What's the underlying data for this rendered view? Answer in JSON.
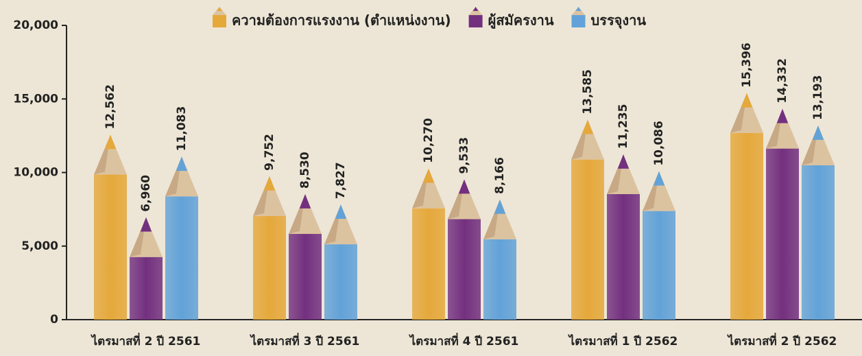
{
  "chart_data": {
    "type": "pencil-bar",
    "categories": [
      "ไตรมาสที่ 2 ปี 2561",
      "ไตรมาสที่ 3 ปี 2561",
      "ไตรมาสที่ 4 ปี 2561",
      "ไตรมาสที่ 1 ปี 2562",
      "ไตรมาสที่ 2 ปี 2562"
    ],
    "series": [
      {
        "name": "ความต้องการแรงงาน (ตำแหน่งงาน)",
        "color": "#e5a83b",
        "values": [
          12562,
          9752,
          10270,
          13585,
          15396
        ],
        "value_labels": [
          "12,562",
          "9,752",
          "10,270",
          "13,585",
          "15,396"
        ]
      },
      {
        "name": "ผู้สมัครงาน",
        "color": "#73307f",
        "values": [
          6960,
          8530,
          9533,
          11235,
          14332
        ],
        "value_labels": [
          "6,960",
          "8,530",
          "9,533",
          "11,235",
          "14,332"
        ]
      },
      {
        "name": "บรรจุงาน",
        "color": "#62a2d8",
        "values": [
          11083,
          7827,
          8166,
          10086,
          13193
        ],
        "value_labels": [
          "11,083",
          "7,827",
          "8,166",
          "10,086",
          "13,193"
        ]
      }
    ],
    "ylim": [
      0,
      20000
    ],
    "yticks": [
      0,
      {
        "value": 5000,
        "label": "5,000"
      },
      {
        "value": 10000,
        "label": "10,000"
      },
      {
        "value": 15000,
        "label": "15,000"
      },
      {
        "value": 20000,
        "label": "20,000"
      }
    ],
    "legend": "top"
  }
}
